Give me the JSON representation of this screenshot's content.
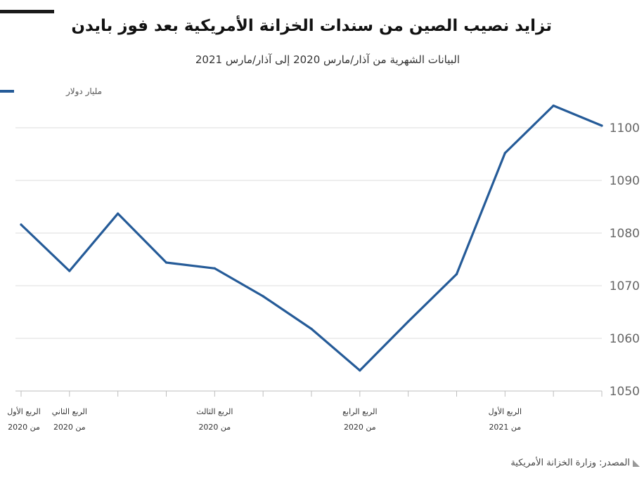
{
  "header": {
    "title": "تزايد نصيب الصين من سندات الخزانة الأمريكية بعد فوز بايدن",
    "subtitle": "البيانات الشهرية من آذار/مارس 2020 إلى آذار/مارس 2021"
  },
  "source": {
    "text": "المصدر: وزارة الخزانة الأمريكية"
  },
  "chart_data": {
    "type": "line",
    "ylabel": "",
    "ylim": [
      1050,
      1100
    ],
    "yticks": [
      1050,
      1060,
      1070,
      1080,
      1090,
      1100
    ],
    "grid": true,
    "legend_position": "top-left",
    "series": [
      {
        "name": "مليار دولار",
        "color": "#255b98",
        "values": [
          1081.6,
          1072.8,
          1083.7,
          1074.4,
          1073.3,
          1068.0,
          1061.8,
          1053.9,
          1063.2,
          1072.2,
          1095.2,
          1104.2,
          1100.4
        ]
      }
    ],
    "x_labels": [
      {
        "index": 0,
        "line1": "الربع الأول",
        "line2": "من 2020"
      },
      {
        "index": 1,
        "line1": "الربع الثاني",
        "line2": "من 2020"
      },
      {
        "index": 4,
        "line1": "الربع الثالث",
        "line2": "من 2020"
      },
      {
        "index": 7,
        "line1": "الربع الرابع",
        "line2": "من 2020"
      },
      {
        "index": 10,
        "line1": "الربع الأول",
        "line2": "من 2021"
      }
    ]
  }
}
